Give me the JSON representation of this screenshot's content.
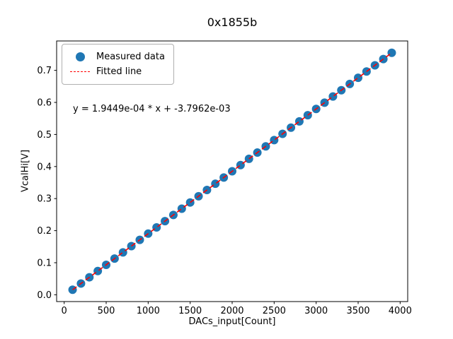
{
  "chart_data": {
    "type": "scatter",
    "title": "0x1855b",
    "xlabel": "DACs_input[Count]",
    "ylabel": "VcalHi[V]",
    "annotation": "y = 1.9449e-04 * x + -3.7962e-03",
    "xlim": [
      -90,
      4090
    ],
    "ylim": [
      -0.0212,
      0.7917
    ],
    "xticks": [
      0,
      500,
      1000,
      1500,
      2000,
      2500,
      3000,
      3500,
      4000
    ],
    "yticks": [
      0.0,
      0.1,
      0.2,
      0.3,
      0.4,
      0.5,
      0.6,
      0.7
    ],
    "x": [
      100,
      200,
      300,
      400,
      500,
      600,
      700,
      800,
      900,
      1000,
      1100,
      1200,
      1300,
      1400,
      1500,
      1600,
      1700,
      1800,
      1900,
      2000,
      2100,
      2200,
      2300,
      2400,
      2500,
      2600,
      2700,
      2800,
      2900,
      3000,
      3100,
      3200,
      3300,
      3400,
      3500,
      3600,
      3700,
      3800,
      3900
    ],
    "y": [
      0.0157,
      0.0351,
      0.0546,
      0.074,
      0.0934,
      0.1129,
      0.1323,
      0.1518,
      0.1712,
      0.1907,
      0.2101,
      0.2296,
      0.249,
      0.2685,
      0.2879,
      0.3074,
      0.3268,
      0.3463,
      0.3657,
      0.3852,
      0.4046,
      0.4241,
      0.4435,
      0.463,
      0.4824,
      0.5019,
      0.5213,
      0.5408,
      0.5602,
      0.5797,
      0.5991,
      0.6186,
      0.638,
      0.6575,
      0.6769,
      0.6964,
      0.7158,
      0.7353,
      0.7547
    ],
    "fit": {
      "slope": 0.00019449,
      "intercept": -0.0037962
    },
    "legend": [
      {
        "label": "Measured data",
        "marker": "dot",
        "color": "#1f77b4"
      },
      {
        "label": "Fitted line",
        "marker": "dashed-line",
        "color": "#ff0000"
      }
    ],
    "colors": {
      "marker": "#1f77b4",
      "line": "#ff0000",
      "axes": "#000000"
    },
    "grid": false,
    "legend_position": "upper-left"
  }
}
